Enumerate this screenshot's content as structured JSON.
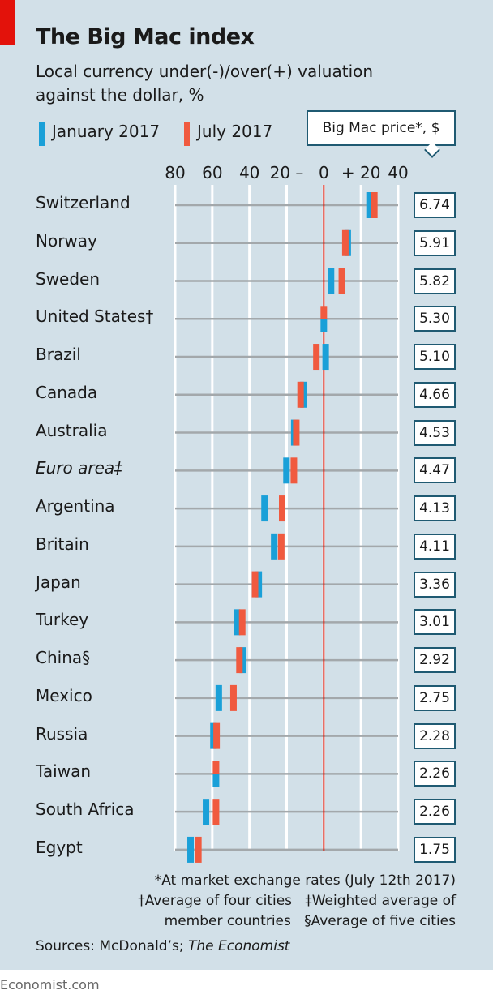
{
  "header": {
    "title": "The Big Mac index",
    "subtitle": "Local currency under(-)/over(+) valuation against the dollar, %",
    "price_box_label": "Big Mac price*, $"
  },
  "chart_data": {
    "type": "dot-range",
    "title": "The Big Mac index",
    "subtitle": "Local currency under(-)/over(+) valuation against the dollar, %",
    "xlim": [
      -80,
      40
    ],
    "x_ticks": [
      -80,
      -60,
      -40,
      -20,
      0,
      20,
      40
    ],
    "x_tick_labels": [
      "80",
      "60",
      "40",
      "20 –",
      "0",
      "+ 20",
      "40"
    ],
    "grid": true,
    "legend_placement": "top-left",
    "colors": {
      "January 2017": "#1aa0d8",
      "July 2017": "#f05a3f",
      "zero_line": "#d92a1c"
    },
    "categories": [
      "Switzerland",
      "Norway",
      "Sweden",
      "United States†",
      "Brazil",
      "Canada",
      "Australia",
      "Euro area‡",
      "Argentina",
      "Britain",
      "Japan",
      "Turkey",
      "China§",
      "Mexico",
      "Russia",
      "Taiwan",
      "South Africa",
      "Egypt"
    ],
    "series": [
      {
        "name": "January 2017",
        "values": [
          24.6,
          12.9,
          3.9,
          0,
          1,
          -11,
          -15.9,
          -20.1,
          -31.9,
          -26.7,
          -35,
          -46.7,
          -43.6,
          -56.5,
          -59.4,
          -58,
          -63.4,
          -71.7
        ]
      },
      {
        "name": "July 2017",
        "values": [
          27.2,
          11.6,
          9.7,
          0,
          -4,
          -12.5,
          -14.8,
          -16.1,
          -22.4,
          -22.9,
          -37,
          -43.9,
          -45.4,
          -48.6,
          -57.7,
          -58,
          -58,
          -67.5
        ]
      }
    ],
    "big_mac_price_usd": [
      "6.74",
      "5.91",
      "5.82",
      "5.30",
      "5.10",
      "4.66",
      "4.53",
      "4.47",
      "4.13",
      "4.11",
      "3.36",
      "3.01",
      "2.92",
      "2.75",
      "2.28",
      "2.26",
      "2.26",
      "1.75"
    ],
    "italic_categories": [
      "Euro area‡"
    ]
  },
  "footnotes": {
    "line1": "*At market exchange rates (July 12th 2017)",
    "line2": "†Average of four cities   ‡Weighted average of",
    "line3": "member countries   §Average of five cities"
  },
  "sources": {
    "prefix": "Sources: McDonald’s; ",
    "italic": "The Economist"
  },
  "brand": "Economist.com"
}
